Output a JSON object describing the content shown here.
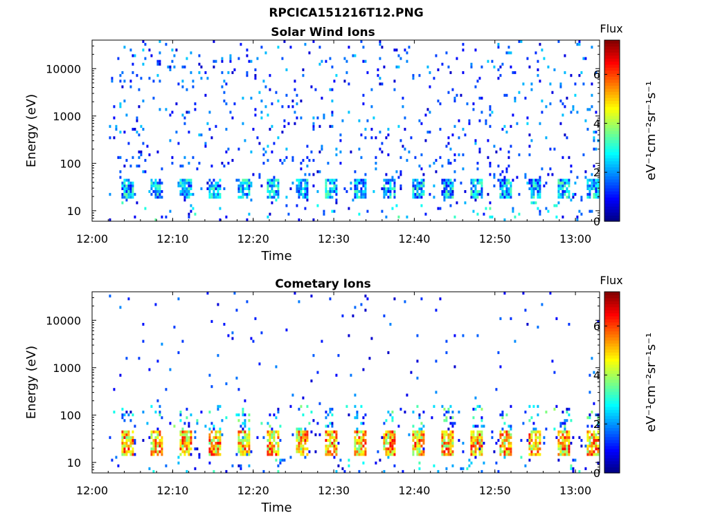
{
  "figure_title": "RPCICA151216T12.PNG",
  "chart_data": [
    {
      "type": "heatmap",
      "title": "Solar Wind Ions",
      "xlabel": "Time",
      "ylabel": "Energy (eV)",
      "x_ticks": [
        "12:00",
        "12:10",
        "12:20",
        "12:30",
        "12:40",
        "12:50",
        "13:00"
      ],
      "x_tick_minutes": [
        0,
        10,
        20,
        30,
        40,
        50,
        60
      ],
      "xlim_minutes": [
        0,
        63
      ],
      "data_start_minute": 2.1,
      "data_end_minute": 63,
      "y_scale": "log",
      "y_ticks": [
        "10",
        "100",
        "1000",
        "10000"
      ],
      "y_tick_values": [
        10,
        100,
        1000,
        10000
      ],
      "ylim": [
        6,
        40000
      ],
      "colorbar": {
        "label_top": "Flux",
        "label": "eV⁻¹cm⁻²sr⁻¹s⁻¹",
        "ticks": [
          "0",
          "2",
          "4",
          "6"
        ],
        "range": [
          0,
          7.4
        ]
      },
      "sweep_period_minutes": 3.6,
      "low_band_ev": [
        18,
        45
      ],
      "low_band_flux": [
        1.0,
        3.5
      ],
      "scatter_flux": [
        0.5,
        2.5
      ]
    },
    {
      "type": "heatmap",
      "title": "Cometary Ions",
      "xlabel": "Time",
      "ylabel": "Energy (eV)",
      "x_ticks": [
        "12:00",
        "12:10",
        "12:20",
        "12:30",
        "12:40",
        "12:50",
        "13:00"
      ],
      "x_tick_minutes": [
        0,
        10,
        20,
        30,
        40,
        50,
        60
      ],
      "xlim_minutes": [
        0,
        63
      ],
      "data_start_minute": 2.1,
      "data_end_minute": 63,
      "y_scale": "log",
      "y_ticks": [
        "10",
        "100",
        "1000",
        "10000"
      ],
      "y_tick_values": [
        10,
        100,
        1000,
        10000
      ],
      "ylim": [
        6,
        40000
      ],
      "colorbar": {
        "label_top": "Flux",
        "label": "eV⁻¹cm⁻²sr⁻¹s⁻¹",
        "ticks": [
          "0",
          "2",
          "4",
          "6"
        ],
        "range": [
          0,
          7.4
        ]
      },
      "sweep_period_minutes": 3.6,
      "low_band_ev": [
        12,
        45
      ],
      "low_band_flux": [
        3.5,
        6.5
      ],
      "scatter_flux": [
        0.5,
        2.0
      ]
    }
  ]
}
